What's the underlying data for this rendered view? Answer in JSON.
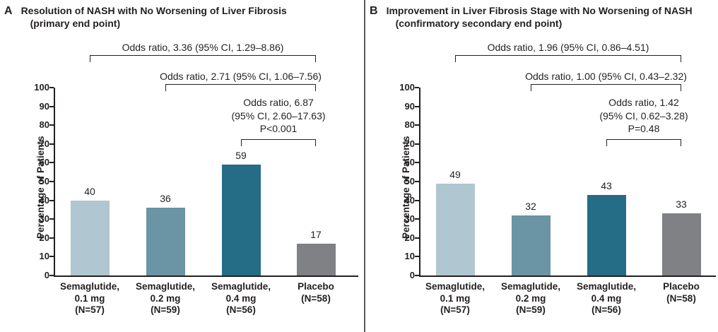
{
  "figure": {
    "background": "#ffffff",
    "divider_color": "#58595b",
    "text_color": "#231f20"
  },
  "chart_data": [
    {
      "type": "bar",
      "panel": "A",
      "title": "Resolution of NASH with No Worsening of Liver Fibrosis",
      "subtitle": "(primary end point)",
      "ylabel": "Percentage of Patients",
      "ylim": [
        0,
        100
      ],
      "y_ticks": [
        100,
        90,
        80,
        70,
        60,
        50,
        40,
        30,
        20,
        10,
        0
      ],
      "grid": "off",
      "categories": [
        {
          "lines": [
            "Semaglutide,",
            "0.1 mg",
            "(N=57)"
          ]
        },
        {
          "lines": [
            "Semaglutide,",
            "0.2 mg",
            "(N=59)"
          ]
        },
        {
          "lines": [
            "Semaglutide,",
            "0.4 mg",
            "(N=56)"
          ]
        },
        {
          "lines": [
            "Placebo",
            "(N=58)"
          ]
        }
      ],
      "values": [
        40,
        36,
        59,
        17
      ],
      "bar_colors": [
        "#b0c6d0",
        "#6b94a4",
        "#256c87",
        "#7f8184"
      ],
      "annotations": [
        {
          "lines": [
            "Odds ratio, 3.36 (95% CI, 1.29–8.86)"
          ],
          "from": 0,
          "to": 3
        },
        {
          "lines": [
            "Odds ratio, 2.71 (95% CI, 1.06–7.56)"
          ],
          "from": 1,
          "to": 3
        },
        {
          "lines": [
            "Odds ratio, 6.87",
            "(95% CI, 2.60–17.63)",
            "P<0.001"
          ],
          "from": 2,
          "to": 3
        }
      ]
    },
    {
      "type": "bar",
      "panel": "B",
      "title": "Improvement in Liver Fibrosis Stage with No Worsening of NASH",
      "subtitle": "(confirmatory secondary end point)",
      "ylabel": "Percentage of Patients",
      "ylim": [
        0,
        100
      ],
      "y_ticks": [
        100,
        90,
        80,
        70,
        60,
        50,
        40,
        30,
        20,
        10,
        0
      ],
      "grid": "off",
      "categories": [
        {
          "lines": [
            "Semaglutide,",
            "0.1 mg",
            "(N=57)"
          ]
        },
        {
          "lines": [
            "Semaglutide,",
            "0.2 mg",
            "(N=59)"
          ]
        },
        {
          "lines": [
            "Semaglutide,",
            "0.4 mg",
            "(N=56)"
          ]
        },
        {
          "lines": [
            "Placebo",
            "(N=58)"
          ]
        }
      ],
      "values": [
        49,
        32,
        43,
        33
      ],
      "bar_colors": [
        "#b0c6d0",
        "#6b94a4",
        "#256c87",
        "#7f8184"
      ],
      "annotations": [
        {
          "lines": [
            "Odds ratio, 1.96 (95% CI, 0.86–4.51)"
          ],
          "from": 0,
          "to": 3
        },
        {
          "lines": [
            "Odds ratio, 1.00 (95% CI, 0.43–2.32)"
          ],
          "from": 1,
          "to": 3
        },
        {
          "lines": [
            "Odds ratio, 1.42",
            "(95% CI, 0.62–3.28)",
            "P=0.48"
          ],
          "from": 2,
          "to": 3
        }
      ]
    }
  ]
}
